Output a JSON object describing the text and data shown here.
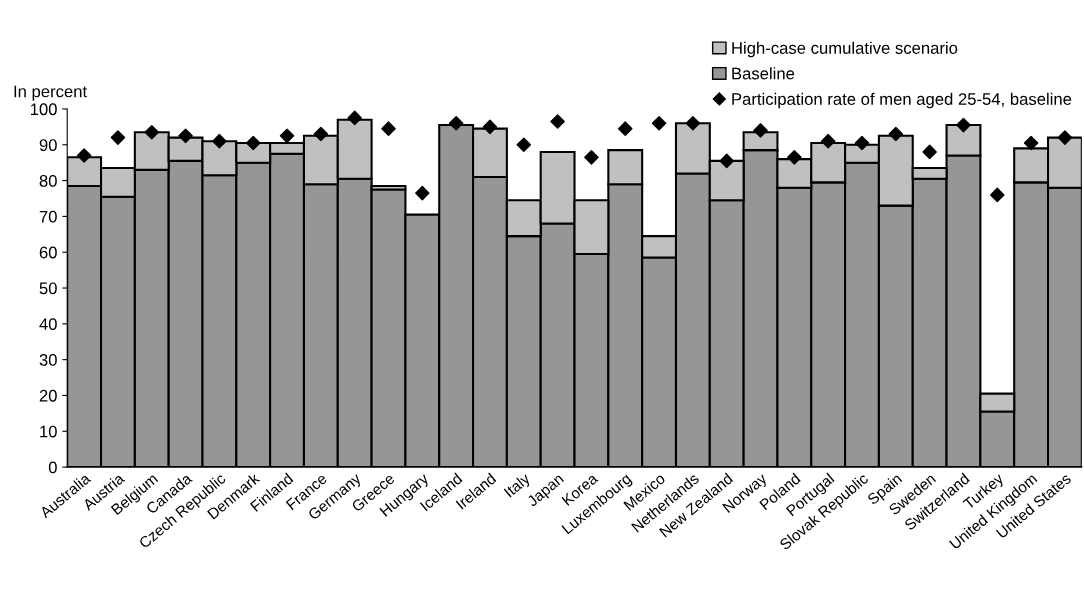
{
  "chart_data": {
    "type": "bar",
    "stacked": true,
    "ylabel": "In percent",
    "ylim": [
      0,
      100
    ],
    "yticks": [
      0,
      10,
      20,
      30,
      40,
      50,
      60,
      70,
      80,
      90,
      100
    ],
    "grid": false,
    "legend": "top right",
    "categories": [
      "Australia",
      "Austria",
      "Belgium",
      "Canada",
      "Czech Republic",
      "Denmark",
      "Finland",
      "France",
      "Germany",
      "Greece",
      "Hungary",
      "Iceland",
      "Ireland",
      "Italy",
      "Japan",
      "Korea",
      "Luxembourg",
      "Mexico",
      "Netherlands",
      "New Zealand",
      "Norway",
      "Poland",
      "Portugal",
      "Slovak Republic",
      "Spain",
      "Sweden",
      "Switzerland",
      "Turkey",
      "United Kingdom",
      "United States"
    ],
    "series": [
      {
        "name": "Baseline",
        "color": "#969696",
        "values": [
          78.5,
          75.5,
          83,
          85.5,
          81.5,
          85,
          87.5,
          79,
          80.5,
          77.5,
          70.5,
          95.5,
          81,
          64.5,
          68,
          59.5,
          79,
          58.5,
          82,
          74.5,
          88.5,
          78,
          79.5,
          85,
          73,
          80.5,
          87,
          15.5,
          79.5,
          78
        ]
      },
      {
        "name": "High-case cumulative scenario",
        "color": "#c0c0c0",
        "values": [
          8,
          8,
          10.5,
          6.5,
          9.5,
          5.5,
          3,
          13.5,
          16.5,
          1,
          null,
          null,
          13.5,
          10,
          20,
          15,
          9.5,
          6,
          14,
          11,
          5,
          8,
          11,
          5,
          19.5,
          3,
          8.5,
          5,
          9.5,
          14
        ]
      },
      {
        "name": "Participation rate of men aged 25-54, baseline",
        "type": "scatter",
        "marker": "diamond",
        "color": "#000000",
        "values": [
          87,
          92,
          93.5,
          92.5,
          91,
          90.5,
          92.5,
          93,
          97.5,
          94.5,
          76.5,
          96,
          95,
          90,
          96.5,
          86.5,
          94.5,
          96,
          96,
          85.5,
          94,
          86.5,
          91,
          90.5,
          93,
          88,
          95.5,
          76,
          90.5,
          92
        ]
      }
    ]
  }
}
